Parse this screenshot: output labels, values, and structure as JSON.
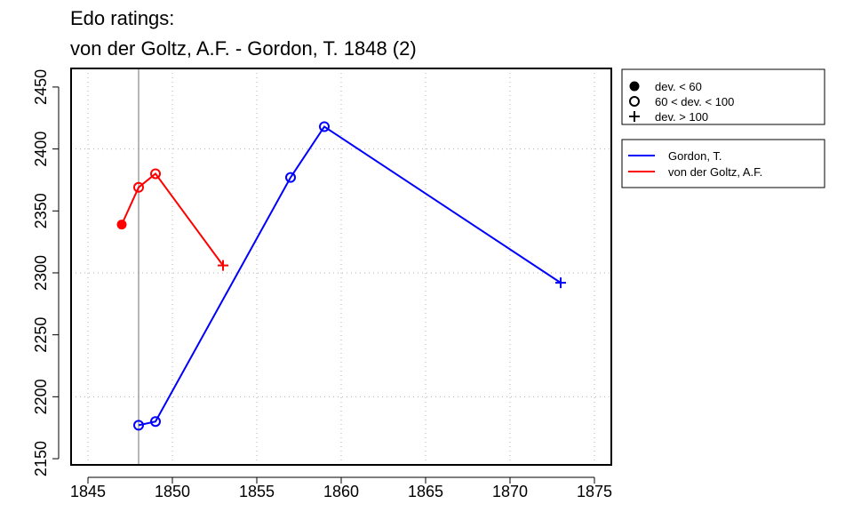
{
  "chart_data": {
    "type": "line",
    "title_line1": "Edo ratings:",
    "title_line2": "von der Goltz, A.F. - Gordon, T. 1848 (2)",
    "xlabel": "",
    "ylabel": "",
    "xlim": [
      1844,
      1876
    ],
    "ylim": [
      2145,
      2465
    ],
    "x_ticks": [
      1845,
      1850,
      1855,
      1860,
      1865,
      1870,
      1875
    ],
    "y_ticks": [
      2150,
      2200,
      2250,
      2300,
      2350,
      2400,
      2450
    ],
    "x_grid": [
      1845,
      1850,
      1855,
      1860,
      1865,
      1870,
      1875
    ],
    "y_grid": [
      2200,
      2300,
      2400
    ],
    "grid": true,
    "vline_x": 1848,
    "series": [
      {
        "name": "Gordon, T.",
        "color": "#0000ff",
        "points": [
          {
            "x": 1848,
            "y": 2177,
            "marker": "circle-open"
          },
          {
            "x": 1849,
            "y": 2180,
            "marker": "circle-open"
          },
          {
            "x": 1857,
            "y": 2377,
            "marker": "circle-open"
          },
          {
            "x": 1859,
            "y": 2418,
            "marker": "circle-open"
          },
          {
            "x": 1873,
            "y": 2292,
            "marker": "plus"
          }
        ]
      },
      {
        "name": "von der Goltz, A.F.",
        "color": "#ff0000",
        "points": [
          {
            "x": 1847,
            "y": 2339,
            "marker": "circle-filled"
          },
          {
            "x": 1848,
            "y": 2369,
            "marker": "circle-open"
          },
          {
            "x": 1849,
            "y": 2380,
            "marker": "circle-open"
          },
          {
            "x": 1853,
            "y": 2306,
            "marker": "plus"
          }
        ]
      }
    ],
    "marker_legend": [
      {
        "marker": "circle-filled",
        "label": "dev. < 60"
      },
      {
        "marker": "circle-open",
        "label": "60 < dev. < 100"
      },
      {
        "marker": "plus",
        "label": "dev. > 100"
      }
    ],
    "series_legend": [
      {
        "label": "Gordon, T.",
        "color": "#0000ff"
      },
      {
        "label": "von der Goltz, A.F.",
        "color": "#ff0000"
      }
    ],
    "legend_position": "right"
  }
}
